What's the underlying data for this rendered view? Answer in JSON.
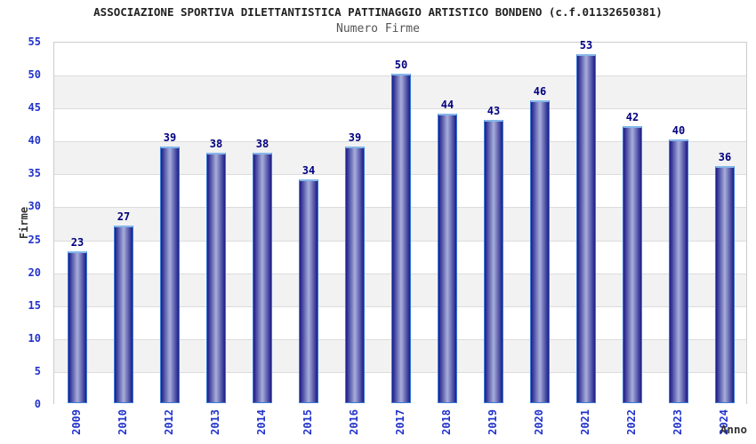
{
  "header": {
    "title": "ASSOCIAZIONE SPORTIVA DILETTANTISTICA PATTINAGGIO ARTISTICO BONDENO (c.f.01132650381)",
    "subtitle": "Numero Firme"
  },
  "chart_data": {
    "type": "bar",
    "title": "ASSOCIAZIONE SPORTIVA DILETTANTISTICA PATTINAGGIO ARTISTICO BONDENO (c.f.01132650381)",
    "subtitle": "Numero Firme",
    "xlabel": "Anno",
    "ylabel": "Firme",
    "categories": [
      "2009",
      "2010",
      "2012",
      "2013",
      "2014",
      "2015",
      "2016",
      "2017",
      "2018",
      "2019",
      "2020",
      "2021",
      "2022",
      "2023",
      "2024"
    ],
    "values": [
      23,
      27,
      39,
      38,
      38,
      34,
      39,
      50,
      44,
      43,
      46,
      53,
      42,
      40,
      36
    ],
    "ylim": [
      0,
      55
    ],
    "ytick_step": 5,
    "yticks": [
      0,
      5,
      10,
      15,
      20,
      25,
      30,
      35,
      40,
      45,
      50,
      55
    ],
    "grid": "horizontal",
    "legend": "none",
    "bar_value_labels": true,
    "colors": {
      "bar_gradient_edge": "#1c1c88",
      "bar_gradient_center": "#a8aeda",
      "bar_border": "#3a7bd5",
      "bar_top_cap": "#85b6ea",
      "value_label": "#000080",
      "axis_tick_label": "#2233cc",
      "axis_title": "#333333",
      "band_light": "#ffffff",
      "band_dark": "#f2f2f2",
      "gridline": "#dcdcdc",
      "frame_border": "#cccccc"
    }
  }
}
